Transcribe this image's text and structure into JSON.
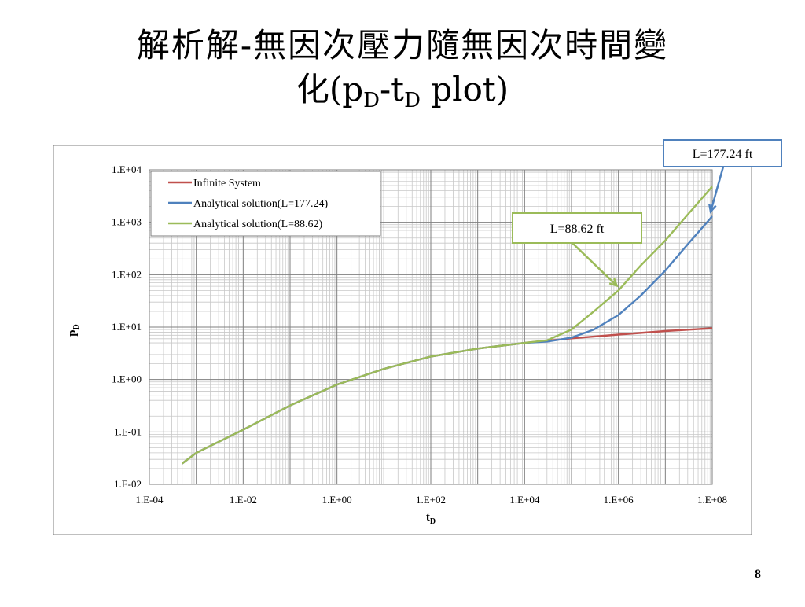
{
  "slide": {
    "title_line1": "解析解-無因次壓力隨無因次時間變",
    "title_line2_prefix": "化(p",
    "title_sub1": "D",
    "title_mid": "-t",
    "title_sub2": "D",
    "title_suffix": " plot)",
    "page_number": "8"
  },
  "chart_data": {
    "type": "line",
    "x_scale": "log",
    "y_scale": "log",
    "xlim": [
      0.0001,
      100000000
    ],
    "ylim": [
      0.01,
      10000
    ],
    "xticks": [
      "1.E-04",
      "1.E-02",
      "1.E+00",
      "1.E+02",
      "1.E+04",
      "1.E+06",
      "1.E+08"
    ],
    "yticks": [
      "1.E-02",
      "1.E-01",
      "1.E+00",
      "1.E+01",
      "1.E+02",
      "1.E+03",
      "1.E+04"
    ],
    "xlabel": "t",
    "xlabel_sub": "D",
    "ylabel": "p",
    "ylabel_sub": "D",
    "grid": true,
    "legend_position": "top-left",
    "series": [
      {
        "name": "Infinite System",
        "color": "#C0504D",
        "x": [
          0.0005,
          0.001,
          0.01,
          0.1,
          1,
          10,
          100,
          1000,
          10000,
          100000,
          1000000,
          10000000,
          100000000
        ],
        "y": [
          0.025,
          0.04,
          0.11,
          0.32,
          0.8,
          1.6,
          2.75,
          3.9,
          5.0,
          6.1,
          7.2,
          8.4,
          9.5
        ]
      },
      {
        "name": "Analytical solution(L=177.24)",
        "color": "#4F81BD",
        "x": [
          0.0005,
          0.001,
          0.01,
          0.1,
          1,
          10,
          100,
          1000,
          10000,
          30000,
          100000,
          300000,
          1000000,
          3000000,
          10000000,
          30000000,
          100000000
        ],
        "y": [
          0.025,
          0.04,
          0.11,
          0.32,
          0.8,
          1.6,
          2.75,
          3.9,
          5.0,
          5.3,
          6.3,
          9.0,
          17,
          40,
          120,
          380,
          1300
        ]
      },
      {
        "name": "Analytical solution(L=88.62)",
        "color": "#9BBB59",
        "x": [
          0.0005,
          0.001,
          0.01,
          0.1,
          1,
          10,
          100,
          1000,
          10000,
          30000,
          100000,
          300000,
          1000000,
          3000000,
          10000000,
          30000000,
          100000000
        ],
        "y": [
          0.025,
          0.04,
          0.11,
          0.32,
          0.8,
          1.6,
          2.75,
          3.9,
          5.0,
          5.6,
          9.0,
          20,
          50,
          150,
          450,
          1400,
          4800
        ]
      }
    ],
    "annotations": [
      {
        "text": "L=177.24 ft",
        "color": "#4F81BD",
        "target_x": 100000000,
        "target_y": 1300
      },
      {
        "text": "L=88.62 ft",
        "color": "#9BBB59",
        "target_x": 1000000,
        "target_y": 50
      }
    ]
  }
}
